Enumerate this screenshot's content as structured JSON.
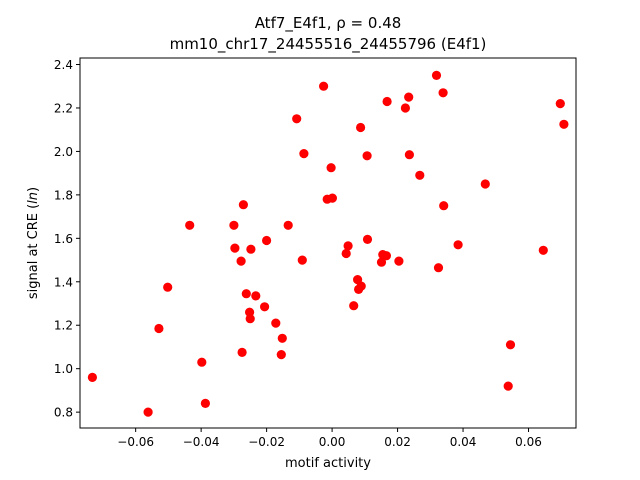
{
  "chart_data": {
    "type": "scatter",
    "title_line1": "Atf7_E4f1, ρ = 0.48",
    "title_line2": "mm10_chr17_24455516_24455796 (E4f1)",
    "xlabel": "motif activity",
    "ylabel_prefix": "signal at CRE (",
    "ylabel_italic": "ln",
    "ylabel_suffix": ")",
    "xlim": [
      -0.077,
      0.0745
    ],
    "ylim": [
      0.727,
      2.43
    ],
    "xticks": [
      -0.06,
      -0.04,
      -0.02,
      0.0,
      0.02,
      0.04,
      0.06
    ],
    "xtick_labels": [
      "−0.06",
      "−0.04",
      "−0.02",
      "0.00",
      "0.02",
      "0.04",
      "0.06"
    ],
    "yticks": [
      0.8,
      1.0,
      1.2,
      1.4,
      1.6,
      1.8,
      2.0,
      2.2,
      2.4
    ],
    "ytick_labels": [
      "0.8",
      "1.0",
      "1.2",
      "1.4",
      "1.6",
      "1.8",
      "2.0",
      "2.2",
      "2.4"
    ],
    "grid": false,
    "marker_color": "#ff0000",
    "points": [
      {
        "x": -0.0732,
        "y": 0.96
      },
      {
        "x": -0.0562,
        "y": 0.8
      },
      {
        "x": -0.0529,
        "y": 1.185
      },
      {
        "x": -0.0502,
        "y": 1.375
      },
      {
        "x": -0.0435,
        "y": 1.66
      },
      {
        "x": -0.0398,
        "y": 1.03
      },
      {
        "x": -0.0387,
        "y": 0.84
      },
      {
        "x": -0.03,
        "y": 1.66
      },
      {
        "x": -0.0297,
        "y": 1.555
      },
      {
        "x": -0.0278,
        "y": 1.495
      },
      {
        "x": -0.0275,
        "y": 1.075
      },
      {
        "x": -0.0271,
        "y": 1.755
      },
      {
        "x": -0.0262,
        "y": 1.345
      },
      {
        "x": -0.0252,
        "y": 1.26
      },
      {
        "x": -0.025,
        "y": 1.23
      },
      {
        "x": -0.0248,
        "y": 1.55
      },
      {
        "x": -0.0233,
        "y": 1.335
      },
      {
        "x": -0.0206,
        "y": 1.285
      },
      {
        "x": -0.02,
        "y": 1.59
      },
      {
        "x": -0.0172,
        "y": 1.21
      },
      {
        "x": -0.0155,
        "y": 1.065
      },
      {
        "x": -0.0152,
        "y": 1.14
      },
      {
        "x": -0.0134,
        "y": 1.66
      },
      {
        "x": -0.0108,
        "y": 2.15
      },
      {
        "x": -0.0091,
        "y": 1.5
      },
      {
        "x": -0.0086,
        "y": 1.99
      },
      {
        "x": -0.0026,
        "y": 2.3
      },
      {
        "x": -0.0015,
        "y": 1.78
      },
      {
        "x": -0.0003,
        "y": 1.925
      },
      {
        "x": 0.0001,
        "y": 1.785
      },
      {
        "x": 0.0043,
        "y": 1.53
      },
      {
        "x": 0.0049,
        "y": 1.565
      },
      {
        "x": 0.0066,
        "y": 1.29
      },
      {
        "x": 0.0078,
        "y": 1.41
      },
      {
        "x": 0.0081,
        "y": 1.365
      },
      {
        "x": 0.0087,
        "y": 2.11
      },
      {
        "x": 0.0089,
        "y": 1.38
      },
      {
        "x": 0.0107,
        "y": 1.98
      },
      {
        "x": 0.0108,
        "y": 1.595
      },
      {
        "x": 0.0151,
        "y": 1.49
      },
      {
        "x": 0.0155,
        "y": 1.525
      },
      {
        "x": 0.0166,
        "y": 1.52
      },
      {
        "x": 0.0168,
        "y": 2.23
      },
      {
        "x": 0.0204,
        "y": 1.495
      },
      {
        "x": 0.0224,
        "y": 2.2
      },
      {
        "x": 0.0234,
        "y": 2.25
      },
      {
        "x": 0.0236,
        "y": 1.985
      },
      {
        "x": 0.0268,
        "y": 1.89
      },
      {
        "x": 0.0319,
        "y": 2.35
      },
      {
        "x": 0.0325,
        "y": 1.465
      },
      {
        "x": 0.0339,
        "y": 2.27
      },
      {
        "x": 0.0341,
        "y": 1.75
      },
      {
        "x": 0.0385,
        "y": 1.57
      },
      {
        "x": 0.0468,
        "y": 1.85
      },
      {
        "x": 0.0538,
        "y": 0.92
      },
      {
        "x": 0.0545,
        "y": 1.11
      },
      {
        "x": 0.0645,
        "y": 1.545
      },
      {
        "x": 0.0697,
        "y": 2.22
      },
      {
        "x": 0.0708,
        "y": 2.125
      }
    ]
  }
}
